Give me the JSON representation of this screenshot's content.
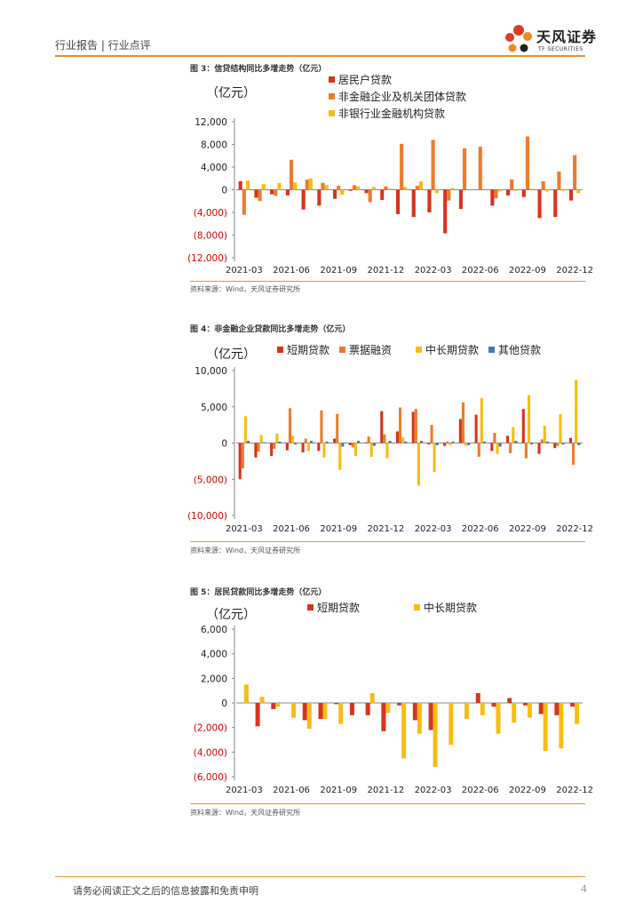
{
  "header": {
    "section": "行业报告 | 行业点评",
    "logo_cn": "天风证券",
    "logo_en": "TF SECURITIES"
  },
  "colors": {
    "red": "#d9341c",
    "orange": "#ec7c30",
    "yellow": "#f7bd16",
    "blue": "#4a78b5",
    "accent": "#e8912e",
    "neg": "#d40000"
  },
  "figures": [
    {
      "title": "图 3：信贷结构同比多增走势（亿元）",
      "source": "资料来源：Wind，天风证券研究所",
      "chart_data": {
        "type": "bar",
        "unit_label": "（亿元）",
        "categories": [
          "2021-03",
          "2021-04",
          "2021-05",
          "2021-06",
          "2021-07",
          "2021-08",
          "2021-09",
          "2021-10",
          "2021-11",
          "2021-12",
          "2022-01",
          "2022-02",
          "2022-03",
          "2022-04",
          "2022-05",
          "2022-06",
          "2022-07",
          "2022-08",
          "2022-09",
          "2022-10",
          "2022-11",
          "2022-12"
        ],
        "x_tick_labels": [
          "2021-03",
          "2021-06",
          "2021-09",
          "2021-12",
          "2022-03",
          "2022-06",
          "2022-09",
          "2022-12"
        ],
        "y_ticks": [
          "12,000",
          "8,000",
          "4,000",
          "0",
          "(4,000)",
          "(8,000)",
          "(12,000)"
        ],
        "ylim": [
          -12000,
          12000
        ],
        "series": [
          {
            "name": "居民户贷款",
            "color": "#d9341c",
            "values": [
              1500,
              -1400,
              -800,
              -1000,
              -3500,
              -2800,
              -1600,
              -200,
              -600,
              -1800,
              -4300,
              -4800,
              -4000,
              -7700,
              -3400,
              0,
              -2800,
              -1000,
              -1300,
              -5000,
              -4800,
              -1900
            ]
          },
          {
            "name": "非金融企业及机关团体贷款",
            "color": "#ec7c30",
            "values": [
              -4400,
              -2000,
              -1100,
              5300,
              1800,
              1200,
              700,
              800,
              -2200,
              600,
              8100,
              700,
              8800,
              -1900,
              7300,
              7600,
              -1500,
              1800,
              9400,
              1500,
              3200,
              6100
            ]
          },
          {
            "name": "非银行业金融机构贷款",
            "color": "#f7bd16",
            "values": [
              1600,
              1000,
              1200,
              1300,
              2000,
              800,
              -900,
              600,
              500,
              200,
              500,
              1500,
              -600,
              300,
              0,
              0,
              -300,
              -200,
              200,
              -300,
              -200,
              -600
            ]
          }
        ]
      }
    },
    {
      "title": "图 4：非金融企业贷款同比多增走势（亿元）",
      "source": "资料来源：Wind，天风证券研究所",
      "chart_data": {
        "type": "bar",
        "unit_label": "（亿元）",
        "categories": [
          "2021-03",
          "2021-04",
          "2021-05",
          "2021-06",
          "2021-07",
          "2021-08",
          "2021-09",
          "2021-10",
          "2021-11",
          "2021-12",
          "2022-01",
          "2022-02",
          "2022-03",
          "2022-04",
          "2022-05",
          "2022-06",
          "2022-07",
          "2022-08",
          "2022-09",
          "2022-10",
          "2022-11",
          "2022-12"
        ],
        "x_tick_labels": [
          "2021-03",
          "2021-06",
          "2021-09",
          "2021-12",
          "2022-03",
          "2022-06",
          "2022-09",
          "2022-12"
        ],
        "y_ticks": [
          "10,000",
          "5,000",
          "0",
          "(5,000)",
          "(10,000)"
        ],
        "ylim": [
          -10000,
          10000
        ],
        "series": [
          {
            "name": "短期贷款",
            "color": "#d9341c",
            "values": [
              -5000,
              -2000,
              -1800,
              -1000,
              -1300,
              -1100,
              600,
              -300,
              100,
              4400,
              1600,
              4300,
              -200,
              -400,
              3300,
              3900,
              -1100,
              1000,
              4700,
              -1500,
              -700,
              700
            ]
          },
          {
            "name": "票据融资",
            "color": "#ec7c30",
            "values": [
              -3500,
              -1200,
              -800,
              4800,
              600,
              4500,
              4000,
              -600,
              900,
              1200,
              4900,
              4700,
              2500,
              200,
              5600,
              -1900,
              1400,
              -1400,
              -2100,
              500,
              -400,
              -3000
            ]
          },
          {
            "name": "中长期贷款",
            "color": "#f7bd16",
            "values": [
              3700,
              1100,
              1300,
              1000,
              -1100,
              -2000,
              -3700,
              -1800,
              -1900,
              -2100,
              800,
              -5900,
              -4000,
              -300,
              -400,
              6200,
              -1500,
              2200,
              6600,
              2400,
              4000,
              8700
            ]
          },
          {
            "name": "其他贷款",
            "color": "#4a78b5",
            "values": [
              300,
              100,
              200,
              -200,
              300,
              200,
              -500,
              300,
              -400,
              300,
              200,
              300,
              -300,
              200,
              -300,
              200,
              -500,
              300,
              -200,
              200,
              -200,
              -300
            ]
          }
        ]
      }
    },
    {
      "title": "图 5：居民贷款同比多增走势（亿元）",
      "source": "资料来源：Wind，天风证券研究所",
      "chart_data": {
        "type": "bar",
        "unit_label": "（亿元）",
        "categories": [
          "2021-03",
          "2021-04",
          "2021-05",
          "2021-06",
          "2021-07",
          "2021-08",
          "2021-09",
          "2021-10",
          "2021-11",
          "2021-12",
          "2022-01",
          "2022-02",
          "2022-03",
          "2022-04",
          "2022-05",
          "2022-06",
          "2022-07",
          "2022-08",
          "2022-09",
          "2022-10",
          "2022-11",
          "2022-12"
        ],
        "x_tick_labels": [
          "2021-03",
          "2021-06",
          "2021-09",
          "2021-12",
          "2022-03",
          "2022-06",
          "2022-09",
          "2022-12"
        ],
        "y_ticks": [
          "6,000",
          "4,000",
          "2,000",
          "0",
          "(2,000)",
          "(4,000)",
          "(6,000)"
        ],
        "ylim": [
          -6000,
          6000
        ],
        "series": [
          {
            "name": "短期贷款",
            "color": "#d9341c",
            "values": [
              0,
              -1900,
              -500,
              0,
              -1400,
              -1300,
              -100,
              -1000,
              -1000,
              -2300,
              -200,
              -1400,
              -2200,
              0,
              0,
              800,
              -300,
              400,
              -200,
              -900,
              -1000,
              -300
            ]
          },
          {
            "name": "中长期贷款",
            "color": "#f7bd16",
            "values": [
              1500,
              500,
              -300,
              -1200,
              -2100,
              -1300,
              -1700,
              0,
              800,
              -800,
              -4500,
              -2500,
              -5200,
              -3400,
              -1300,
              -1000,
              -2500,
              -1600,
              -1200,
              -3900,
              -3700,
              -1700
            ]
          }
        ]
      }
    }
  ],
  "footer": {
    "disclaimer": "请务必阅读正文之后的信息披露和免责申明",
    "page": "4"
  }
}
